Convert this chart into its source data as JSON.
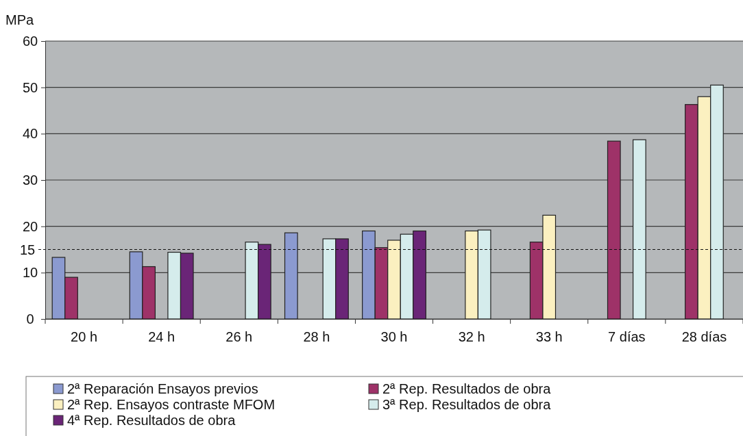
{
  "chart_data": {
    "type": "bar",
    "ylabel": "MPa",
    "categories": [
      "20 h",
      "24 h",
      "26 h",
      "28 h",
      "30 h",
      "32 h",
      "33 h",
      "7 días",
      "28 días"
    ],
    "series": [
      {
        "name": "2ª Reparación Ensayos previos",
        "color": "#8b9ad0",
        "values": [
          13.3,
          14.5,
          null,
          18.6,
          19.0,
          null,
          null,
          null,
          null
        ]
      },
      {
        "name": "2ª Rep. Resultados de obra",
        "color": "#9e3268",
        "values": [
          9.0,
          11.3,
          null,
          null,
          15.4,
          null,
          16.6,
          38.4,
          46.3
        ]
      },
      {
        "name": "2ª Rep. Ensayos contraste MFOM",
        "color": "#fbf0c0",
        "values": [
          null,
          null,
          null,
          null,
          17.0,
          19.0,
          22.4,
          null,
          48.0
        ]
      },
      {
        "name": "3ª Rep. Resultados de obra",
        "color": "#d5ecec",
        "values": [
          null,
          14.4,
          16.6,
          17.3,
          18.3,
          19.2,
          null,
          38.7,
          50.5
        ]
      },
      {
        "name": "4ª Rep. Resultados de obra",
        "color": "#6a2577",
        "values": [
          null,
          14.2,
          16.1,
          17.3,
          19.0,
          null,
          null,
          null,
          null
        ]
      }
    ],
    "ylim": [
      0,
      60
    ],
    "yticks": [
      0,
      10,
      20,
      30,
      40,
      50,
      60
    ],
    "grid": "y",
    "legend": "bottom",
    "ref_lines": [
      {
        "axis": "y",
        "value": 15,
        "label": "15",
        "line_style": "dashed"
      }
    ]
  }
}
